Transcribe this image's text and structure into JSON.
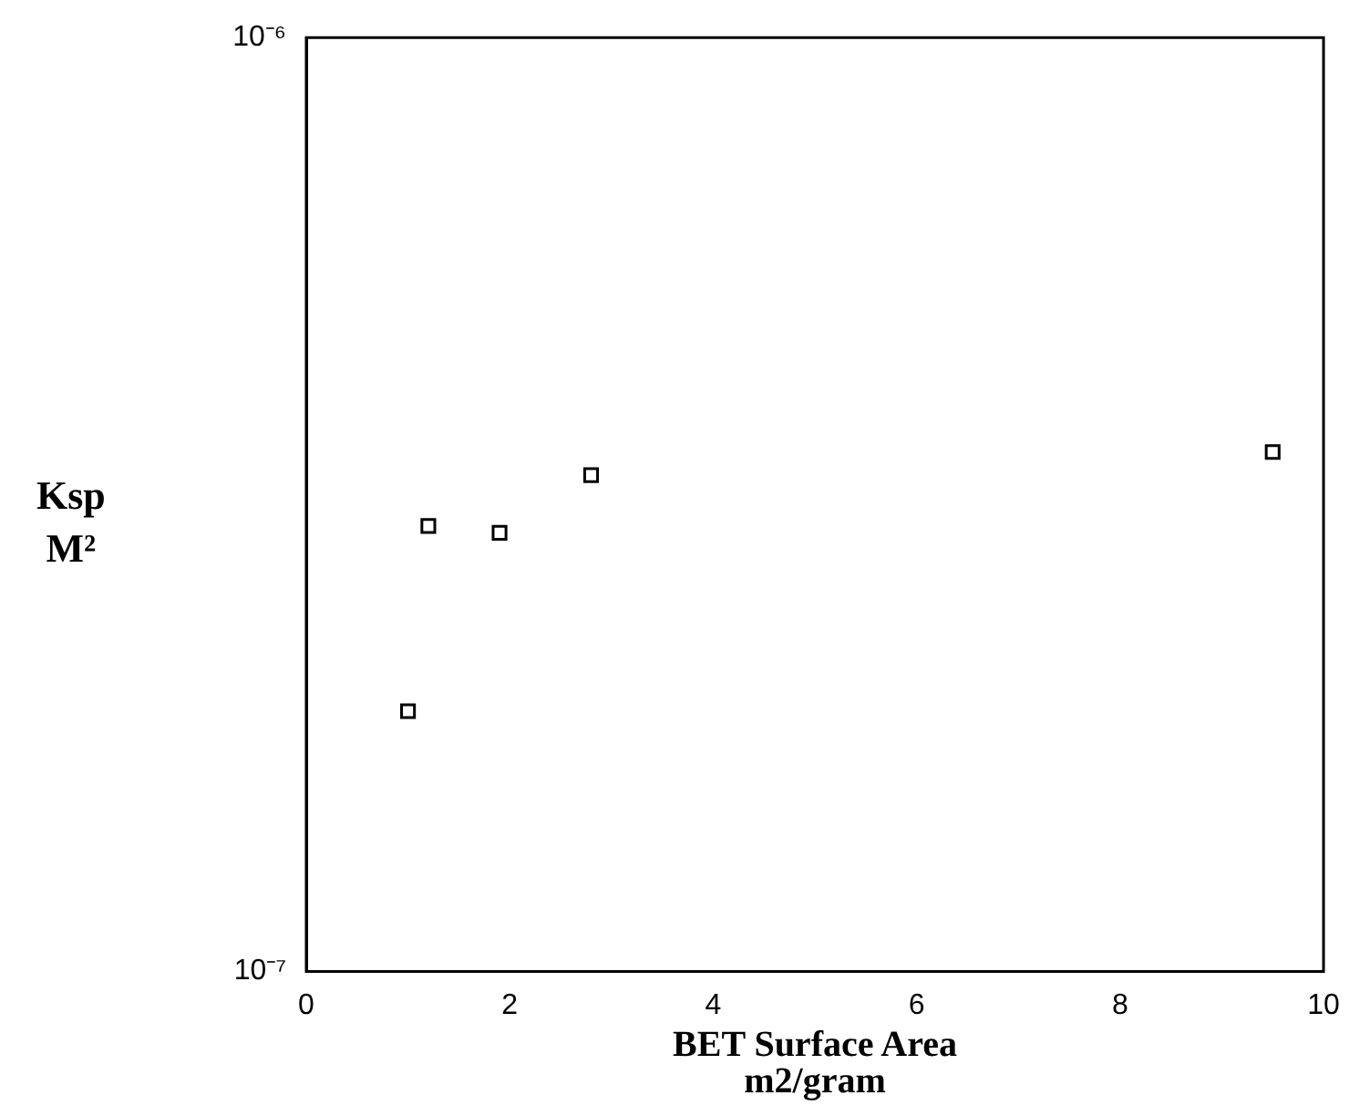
{
  "chart_data": {
    "type": "scatter",
    "xlabel": "BET Surface Area\nm2/gram",
    "ylabel": "Ksp\nM²",
    "x": [
      1.0,
      1.2,
      1.9,
      2.8,
      9.5
    ],
    "series": [
      {
        "color": "#000000",
        "values": [
          1.9e-07,
          3e-07,
          2.95e-07,
          3.4e-07,
          3.6e-07
        ]
      }
    ],
    "xlim": [
      0,
      10
    ],
    "xticks": [
      0,
      2,
      4,
      6,
      8,
      10
    ],
    "ylim": [
      1e-07,
      1e-06
    ],
    "yticks": [
      {
        "value": 1e-07,
        "label": "10⁻⁷"
      },
      {
        "value": 1e-06,
        "label": "10⁻⁶"
      }
    ],
    "log": "y",
    "grid": false,
    "legend": false,
    "marker": "square"
  }
}
